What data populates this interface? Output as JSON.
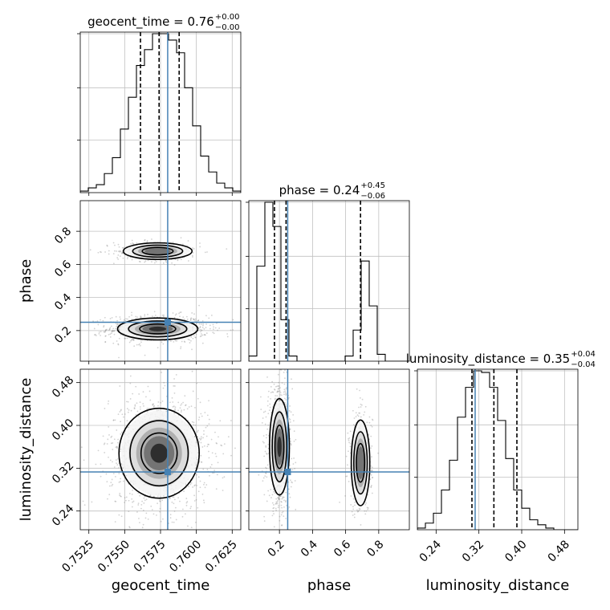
{
  "chart_data": {
    "type": "corner",
    "parameters": [
      "geocent_time",
      "phase",
      "luminosity_distance"
    ],
    "injection": {
      "geocent_time": 0.758,
      "phase": 0.25,
      "luminosity_distance": 0.313
    },
    "colors": {
      "injection": "#4682b4",
      "hist": "#000000",
      "grid": "#c0c0c0",
      "points": "#7f7f7f"
    },
    "titles": [
      {
        "param": "geocent_time",
        "text": "geocent_time = 0.76",
        "plus": "+0.00",
        "minus": "−0.00"
      },
      {
        "param": "phase",
        "text": "phase = 0.24",
        "plus": "+0.45",
        "minus": "−0.06"
      },
      {
        "param": "luminosity_distance",
        "text": "luminosity_distance = 0.35",
        "plus": "+0.04",
        "minus": "−0.04"
      }
    ],
    "axis_labels": {
      "x": [
        "geocent_time",
        "phase",
        "luminosity_distance"
      ],
      "y": [
        "phase",
        "luminosity_distance"
      ]
    },
    "ranges": {
      "geocent_time": [
        0.7519,
        0.7631
      ],
      "phase": [
        0.015,
        0.985
      ],
      "luminosity_distance": [
        0.205,
        0.505
      ]
    },
    "ticks": {
      "geocent_time": {
        "values": [
          0.7525,
          0.755,
          0.7575,
          0.76,
          0.7625
        ],
        "labels": [
          "0.7525",
          "0.7550",
          "0.7575",
          "0.7600",
          "0.7625"
        ]
      },
      "phase": {
        "values": [
          0.2,
          0.4,
          0.6,
          0.8
        ],
        "labels": [
          "0.2",
          "0.4",
          "0.6",
          "0.8"
        ]
      },
      "luminosity_distance": {
        "values": [
          0.24,
          0.32,
          0.4,
          0.48
        ],
        "labels": [
          "0.24",
          "0.32",
          "0.40",
          "0.48"
        ]
      }
    },
    "histograms": {
      "geocent_time": {
        "edges_start": 0.7519,
        "edges_step": 0.00056,
        "counts": [
          1,
          3,
          5,
          12,
          22,
          40,
          60,
          80,
          90,
          100,
          100,
          96,
          88,
          66,
          42,
          23,
          13,
          6,
          3,
          1
        ]
      },
      "phase": {
        "edges_start": 0.015,
        "edges_step": 0.0485,
        "counts": [
          3,
          55,
          92,
          78,
          24,
          3,
          0,
          0,
          0,
          0,
          0,
          0,
          3,
          18,
          58,
          32,
          4,
          0,
          0,
          0
        ]
      },
      "luminosity_distance": {
        "edges_start": 0.205,
        "edges_step": 0.015,
        "counts": [
          1,
          4,
          10,
          24,
          42,
          68,
          86,
          96,
          95,
          86,
          66,
          43,
          24,
          13,
          6,
          3,
          1,
          0,
          0,
          0
        ]
      }
    },
    "quantiles": {
      "geocent_time": [
        0.7561,
        0.7574,
        0.7588
      ],
      "phase": [
        0.17,
        0.24,
        0.69
      ],
      "luminosity_distance": [
        0.307,
        0.348,
        0.391
      ]
    },
    "blobs": [
      {
        "x": "geocent_time",
        "y": "phase",
        "cx": 0.7573,
        "cy": 0.21,
        "sx": 0.0014,
        "sy": 0.033,
        "weight": 0.72
      },
      {
        "x": "geocent_time",
        "y": "phase",
        "cx": 0.7573,
        "cy": 0.68,
        "sx": 0.0012,
        "sy": 0.025,
        "weight": 0.28
      },
      {
        "x": "geocent_time",
        "y": "luminosity_distance",
        "cx": 0.7574,
        "cy": 0.348,
        "sx": 0.0014,
        "sy": 0.042,
        "weight": 1
      },
      {
        "x": "phase",
        "y": "luminosity_distance",
        "cx": 0.2,
        "cy": 0.36,
        "sx": 0.03,
        "sy": 0.045,
        "weight": 0.72
      },
      {
        "x": "phase",
        "y": "luminosity_distance",
        "cx": 0.69,
        "cy": 0.33,
        "sx": 0.028,
        "sy": 0.04,
        "weight": 0.28
      }
    ]
  }
}
